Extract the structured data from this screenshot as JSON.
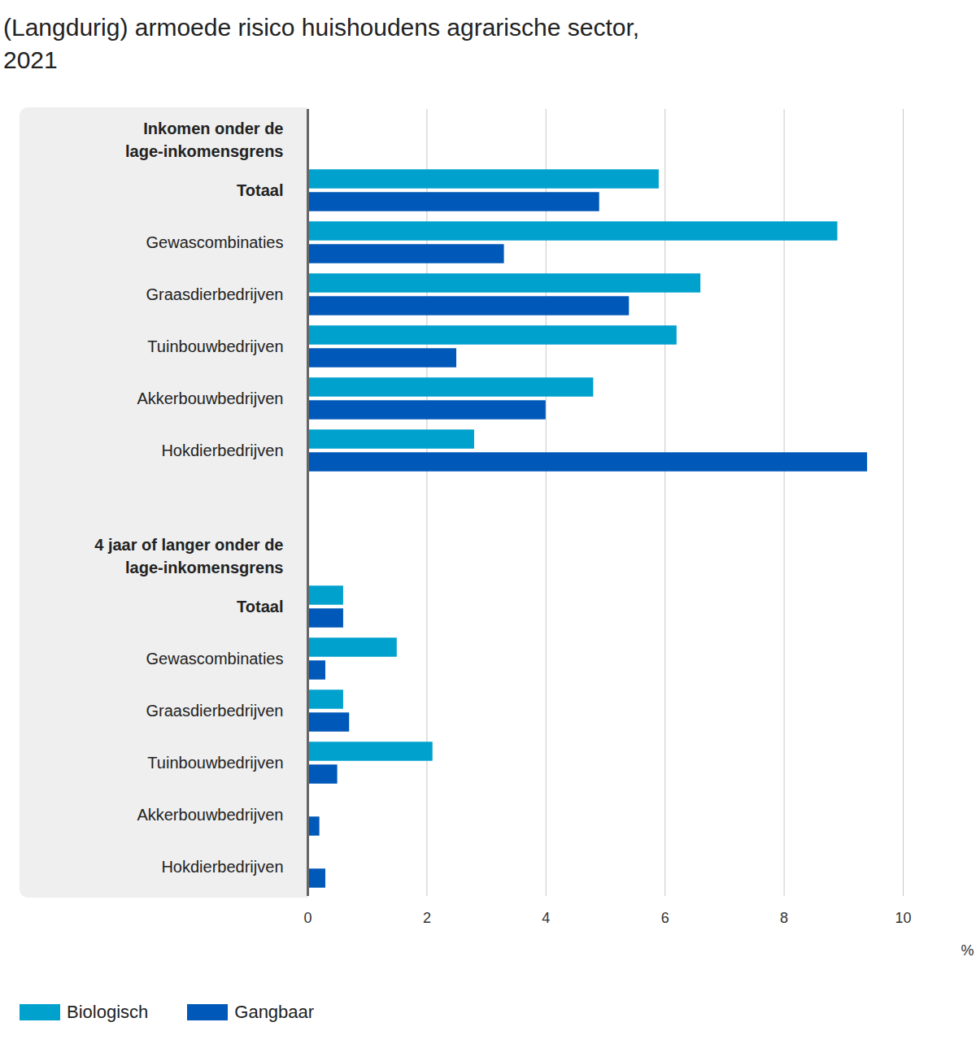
{
  "chart_data": {
    "type": "bar",
    "orientation": "horizontal",
    "title": "(Langdurig) armoede risico huishoudens agrarische sector, 2021",
    "x_label": "%",
    "xlim": [
      0,
      10
    ],
    "xticks": [
      0,
      2,
      4,
      6,
      8,
      10
    ],
    "grid": true,
    "legend": "bottom-left",
    "groups": [
      {
        "title": "Inkomen onder de lage-inkomensgrens",
        "categories": [
          "Totaal",
          "Gewascombinaties",
          "Graasdierbedrijven",
          "Tuinbouwbedrijven",
          "Akkerbouwbedrijven",
          "Hokdierbedrijven"
        ]
      },
      {
        "title": "4 jaar of langer onder de lage-inkomensgrens",
        "categories": [
          "Totaal",
          "Gewascombinaties",
          "Graasdierbedrijven",
          "Tuinbouwbedrijven",
          "Akkerbouwbedrijven",
          "Hokdierbedrijven"
        ]
      }
    ],
    "series": [
      {
        "name": "Biologisch",
        "color": "#00a1cd",
        "values": [
          [
            5.9,
            8.9,
            6.6,
            6.2,
            4.8,
            2.8
          ],
          [
            0.6,
            1.5,
            0.6,
            2.1,
            null,
            null
          ]
        ]
      },
      {
        "name": "Gangbaar",
        "color": "#0058b8",
        "values": [
          [
            4.9,
            3.3,
            5.4,
            2.5,
            4.0,
            9.4
          ],
          [
            0.6,
            0.3,
            0.7,
            0.5,
            0.2,
            0.3
          ]
        ]
      }
    ]
  }
}
